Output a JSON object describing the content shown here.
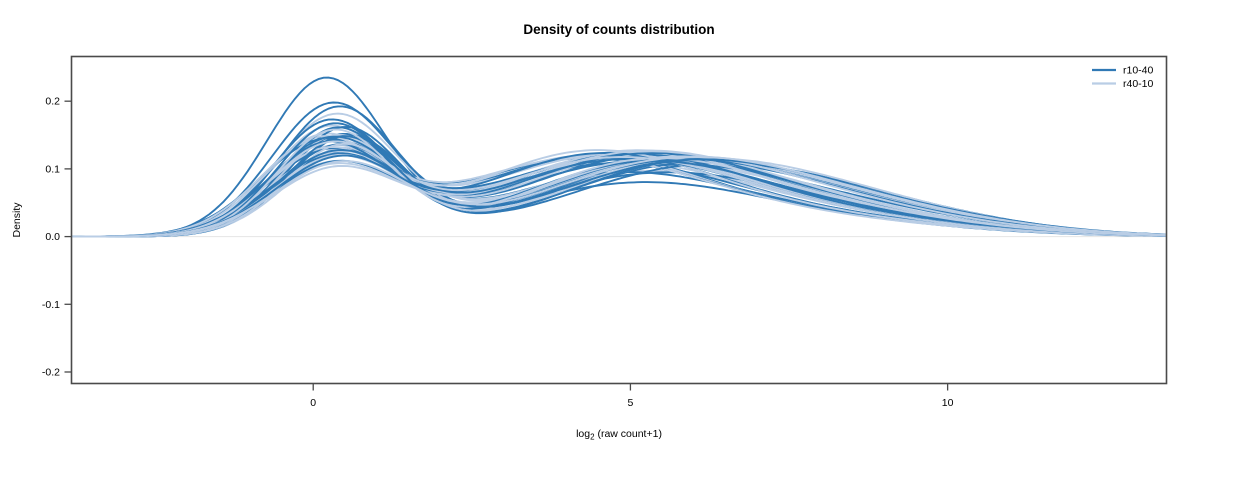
{
  "chart_data": {
    "type": "line",
    "title": "Density of counts distribution",
    "xlabel": "log2 (raw count+1)",
    "xlabel_parts": {
      "base": "log",
      "subscript": "2",
      "rest": " (raw count+1)"
    },
    "ylabel": "Density",
    "xlim": [
      -3.81,
      13.45
    ],
    "ylim": [
      -0.217,
      0.266
    ],
    "xticks": {
      "values": [
        0,
        5,
        10
      ],
      "labels": [
        "0",
        "5",
        "10"
      ]
    },
    "yticks": {
      "values": [
        -0.2,
        -0.1,
        0,
        0.1,
        0.2
      ],
      "labels": [
        "-0.2",
        "-0.1",
        "0.0",
        "0.1",
        "0.2"
      ]
    },
    "grid": false,
    "zero_line": {
      "y": 0,
      "color": "#e4e4e4"
    },
    "axis_color": "#4a4a4a",
    "legend": {
      "position": "top-right",
      "entries": [
        {
          "label": "r10-40",
          "color": "#3079b5"
        },
        {
          "label": "r40-10",
          "color": "#b9cde5"
        }
      ]
    },
    "curve_model": "each curve = [a1,m1,s1,a2,m2,s2,a3,m3,s3]; density(x) = sum_i ai*exp(-(x-mi)^2/(2*si^2))/(si*sqrt(2*pi)); first peak ~x=0.3 heights 0.10-0.24, dip ~x=2, broad bump ~x=4-6 heights 0.09-0.15, tail to x~13",
    "series": [
      {
        "name": "r10-40",
        "color": "#3079b5",
        "curves": [
          [
            0.54,
            0.2,
            0.93,
            0.32,
            4.9,
            1.9,
            0.14,
            7.6,
            2.3
          ],
          [
            0.46,
            0.3,
            0.95,
            0.34,
            4.6,
            1.8,
            0.2,
            7.2,
            2.4
          ],
          [
            0.44,
            0.4,
            0.93,
            0.36,
            5.1,
            1.9,
            0.2,
            7.8,
            2.2
          ],
          [
            0.37,
            0.25,
            0.9,
            0.41,
            4.4,
            1.9,
            0.22,
            7.0,
            2.5
          ],
          [
            0.35,
            0.45,
            0.95,
            0.42,
            5.3,
            2.0,
            0.23,
            8.0,
            2.3
          ],
          [
            0.34,
            0.15,
            1.0,
            0.44,
            4.2,
            1.8,
            0.22,
            6.8,
            2.6
          ],
          [
            0.36,
            0.5,
            0.9,
            0.41,
            5.6,
            1.9,
            0.23,
            8.2,
            2.2
          ],
          [
            0.33,
            0.3,
            0.98,
            0.45,
            4.8,
            2.0,
            0.22,
            7.4,
            2.4
          ],
          [
            0.32,
            0.1,
            0.95,
            0.44,
            4.0,
            1.9,
            0.24,
            6.6,
            2.7
          ],
          [
            0.34,
            0.55,
            0.92,
            0.43,
            5.8,
            2.0,
            0.23,
            8.5,
            2.1
          ],
          [
            0.31,
            0.35,
            1.05,
            0.46,
            5.0,
            1.9,
            0.23,
            7.6,
            2.4
          ],
          [
            0.3,
            0.25,
            1.0,
            0.47,
            4.5,
            2.0,
            0.23,
            7.1,
            2.5
          ],
          [
            0.35,
            0.38,
            0.88,
            0.42,
            5.2,
            1.8,
            0.23,
            7.9,
            2.2
          ],
          [
            0.32,
            0.42,
            0.96,
            0.44,
            5.5,
            2.0,
            0.24,
            8.1,
            2.3
          ],
          [
            0.29,
            0.32,
            1.02,
            0.47,
            4.7,
            1.9,
            0.24,
            7.3,
            2.6
          ],
          [
            0.31,
            0.2,
            0.94,
            0.45,
            4.3,
            1.8,
            0.24,
            6.9,
            2.5
          ],
          [
            0.26,
            0.35,
            1.0,
            0.49,
            4.9,
            2.0,
            0.25,
            7.5,
            2.4
          ],
          [
            0.33,
            0.48,
            0.9,
            0.43,
            5.7,
            1.9,
            0.24,
            8.3,
            2.2
          ],
          [
            0.34,
            0.28,
            0.97,
            0.44,
            4.6,
            1.9,
            0.22,
            7.2,
            2.4
          ],
          [
            0.31,
            0.4,
            1.0,
            0.45,
            5.4,
            2.0,
            0.24,
            8.0,
            2.3
          ],
          [
            0.37,
            0.33,
            0.9,
            0.41,
            5.0,
            1.8,
            0.22,
            7.7,
            2.3
          ],
          [
            0.3,
            0.45,
            1.03,
            0.46,
            5.6,
            2.0,
            0.24,
            8.4,
            2.2
          ]
        ]
      },
      {
        "name": "r40-10",
        "color": "#b9cde5",
        "curves": [
          [
            0.42,
            0.35,
            0.95,
            0.36,
            4.8,
            1.9,
            0.22,
            7.5,
            2.3
          ],
          [
            0.36,
            0.25,
            0.92,
            0.41,
            4.5,
            1.9,
            0.23,
            7.1,
            2.4
          ],
          [
            0.34,
            0.4,
            0.96,
            0.43,
            5.0,
            2.0,
            0.23,
            7.7,
            2.3
          ],
          [
            0.32,
            0.3,
            1.0,
            0.45,
            4.7,
            1.9,
            0.23,
            7.3,
            2.5
          ],
          [
            0.3,
            0.45,
            0.95,
            0.46,
            5.3,
            2.0,
            0.24,
            8.0,
            2.2
          ],
          [
            0.33,
            0.15,
            0.93,
            0.44,
            4.1,
            1.8,
            0.23,
            6.7,
            2.6
          ],
          [
            0.31,
            0.5,
            0.98,
            0.45,
            5.5,
            2.0,
            0.24,
            8.2,
            2.2
          ],
          [
            0.29,
            0.28,
            1.02,
            0.47,
            4.6,
            1.9,
            0.24,
            7.2,
            2.5
          ],
          [
            0.32,
            0.1,
            0.95,
            0.45,
            4.0,
            1.9,
            0.23,
            6.6,
            2.7
          ],
          [
            0.3,
            0.55,
            0.96,
            0.46,
            5.7,
            2.0,
            0.24,
            8.4,
            2.1
          ],
          [
            0.28,
            0.35,
            1.05,
            0.48,
            5.0,
            1.9,
            0.24,
            7.6,
            2.4
          ],
          [
            0.27,
            0.25,
            1.0,
            0.49,
            4.4,
            2.0,
            0.24,
            7.0,
            2.5
          ],
          [
            0.33,
            0.38,
            0.9,
            0.44,
            5.2,
            1.9,
            0.23,
            7.8,
            2.2
          ],
          [
            0.3,
            0.42,
            0.98,
            0.46,
            5.4,
            2.0,
            0.24,
            8.1,
            2.3
          ],
          [
            0.26,
            0.32,
            1.03,
            0.49,
            4.8,
            1.9,
            0.25,
            7.4,
            2.6
          ],
          [
            0.29,
            0.2,
            0.95,
            0.47,
            4.2,
            1.8,
            0.24,
            6.8,
            2.5
          ],
          [
            0.24,
            0.35,
            1.0,
            0.51,
            4.9,
            2.0,
            0.25,
            7.5,
            2.4
          ],
          [
            0.31,
            0.48,
            0.92,
            0.45,
            5.6,
            1.9,
            0.24,
            8.3,
            2.2
          ],
          [
            0.32,
            0.28,
            0.97,
            0.45,
            4.5,
            1.9,
            0.23,
            7.1,
            2.4
          ],
          [
            0.29,
            0.4,
            1.0,
            0.47,
            5.3,
            2.0,
            0.24,
            7.9,
            2.3
          ],
          [
            0.35,
            0.33,
            0.9,
            0.42,
            5.1,
            1.8,
            0.23,
            7.7,
            2.3
          ],
          [
            0.28,
            0.45,
            1.04,
            0.48,
            5.5,
            2.0,
            0.24,
            8.3,
            2.2
          ]
        ]
      }
    ]
  }
}
